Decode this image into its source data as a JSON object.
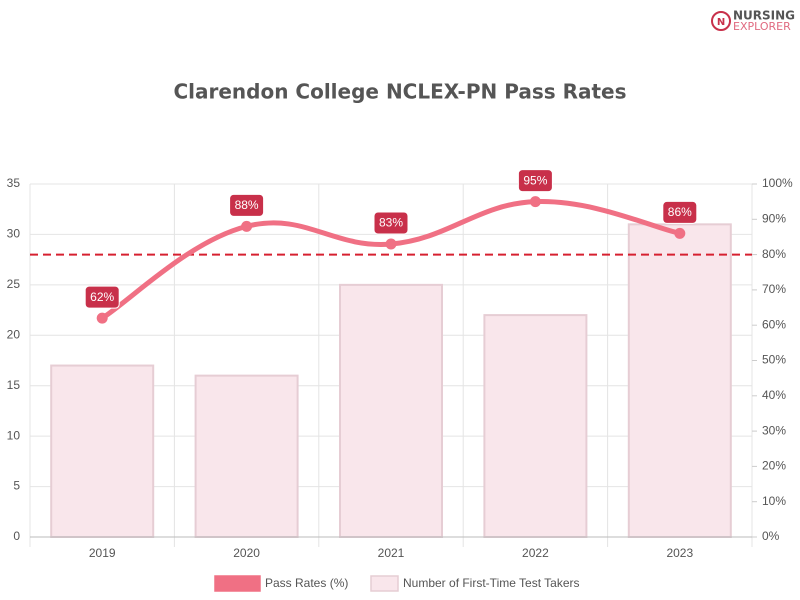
{
  "logo": {
    "line1": "NURSING",
    "line2": "EXPLORER"
  },
  "chart_data": {
    "type": "combo",
    "title": "Clarendon College NCLEX-PN Pass Rates",
    "categories": [
      "2019",
      "2020",
      "2021",
      "2022",
      "2023"
    ],
    "series": [
      {
        "name": "Pass Rates (%)",
        "type": "line",
        "axis": "y2",
        "color": "#f07084",
        "label_color": "#c8304a",
        "values": [
          62,
          88,
          83,
          95,
          86
        ],
        "value_labels": [
          "62%",
          "88%",
          "83%",
          "95%",
          "86%"
        ]
      },
      {
        "name": "Number of First-Time Test Takers",
        "type": "bar",
        "color": "#f9e6eb",
        "border_color": "#e6cdd4",
        "values": [
          17,
          16,
          25,
          22,
          31
        ]
      }
    ],
    "ylim": [
      0,
      35
    ],
    "yticks": [
      0,
      5,
      10,
      15,
      20,
      25,
      30,
      35
    ],
    "y2lim": [
      0,
      100
    ],
    "y2ticks": [
      {
        "value": 0,
        "label": "0%"
      },
      {
        "value": 10,
        "label": "10%"
      },
      {
        "value": 20,
        "label": "20%"
      },
      {
        "value": 30,
        "label": "30%"
      },
      {
        "value": 40,
        "label": "40%"
      },
      {
        "value": 50,
        "label": "50%"
      },
      {
        "value": 60,
        "label": "60%"
      },
      {
        "value": 70,
        "label": "70%"
      },
      {
        "value": 80,
        "label": "80%"
      },
      {
        "value": 90,
        "label": "90%"
      },
      {
        "value": 100,
        "label": "100%"
      }
    ],
    "reference_line": {
      "value": 80,
      "axis": "y2",
      "color": "#d62030"
    },
    "grid": true,
    "legend": "bottom"
  }
}
